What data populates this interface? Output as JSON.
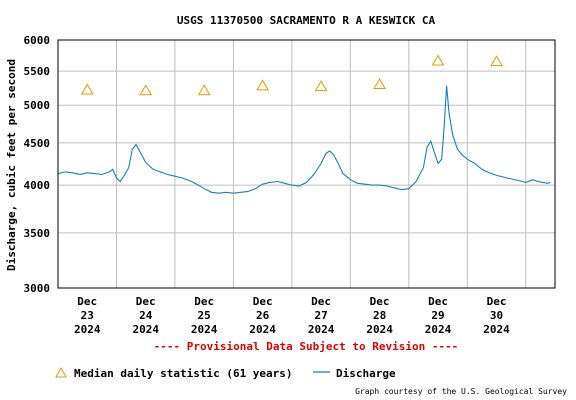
{
  "chart_data": {
    "type": "line",
    "title": "USGS 11370500 SACRAMENTO R A KESWICK CA",
    "ylabel": "Discharge, cubic feet per second",
    "xlabel": "",
    "yscale": "log",
    "ylim": [
      3000,
      6000
    ],
    "yticks": [
      3000,
      3500,
      4000,
      4500,
      5000,
      5500,
      6000
    ],
    "xlim": [
      "2024-12-22T12:00",
      "2024-12-31T00:00"
    ],
    "xticks": [
      {
        "at": "2024-12-23",
        "month": "Dec",
        "day": "23",
        "year": "2024"
      },
      {
        "at": "2024-12-24",
        "month": "Dec",
        "day": "24",
        "year": "2024"
      },
      {
        "at": "2024-12-25",
        "month": "Dec",
        "day": "25",
        "year": "2024"
      },
      {
        "at": "2024-12-26",
        "month": "Dec",
        "day": "26",
        "year": "2024"
      },
      {
        "at": "2024-12-27",
        "month": "Dec",
        "day": "27",
        "year": "2024"
      },
      {
        "at": "2024-12-28",
        "month": "Dec",
        "day": "28",
        "year": "2024"
      },
      {
        "at": "2024-12-29",
        "month": "Dec",
        "day": "29",
        "year": "2024"
      },
      {
        "at": "2024-12-30",
        "month": "Dec",
        "day": "30",
        "year": "2024"
      }
    ],
    "grid": true,
    "series": [
      {
        "name": "Discharge",
        "kind": "line",
        "color": "#1a7fb8",
        "points": [
          [
            "2024-12-22T12:00",
            4130
          ],
          [
            "2024-12-22T15:00",
            4150
          ],
          [
            "2024-12-22T18:00",
            4140
          ],
          [
            "2024-12-22T21:00",
            4120
          ],
          [
            "2024-12-23T00:00",
            4140
          ],
          [
            "2024-12-23T03:00",
            4130
          ],
          [
            "2024-12-23T06:00",
            4120
          ],
          [
            "2024-12-23T09:00",
            4150
          ],
          [
            "2024-12-23T10:30",
            4180
          ],
          [
            "2024-12-23T12:00",
            4080
          ],
          [
            "2024-12-23T13:30",
            4040
          ],
          [
            "2024-12-23T15:00",
            4100
          ],
          [
            "2024-12-23T17:00",
            4200
          ],
          [
            "2024-12-23T18:30",
            4420
          ],
          [
            "2024-12-23T20:00",
            4480
          ],
          [
            "2024-12-23T21:30",
            4400
          ],
          [
            "2024-12-24T00:00",
            4260
          ],
          [
            "2024-12-24T03:00",
            4180
          ],
          [
            "2024-12-24T06:00",
            4150
          ],
          [
            "2024-12-24T09:00",
            4120
          ],
          [
            "2024-12-24T12:00",
            4100
          ],
          [
            "2024-12-24T15:00",
            4080
          ],
          [
            "2024-12-24T18:00",
            4050
          ],
          [
            "2024-12-24T21:00",
            4010
          ],
          [
            "2024-12-25T00:00",
            3960
          ],
          [
            "2024-12-25T03:00",
            3920
          ],
          [
            "2024-12-25T06:00",
            3910
          ],
          [
            "2024-12-25T09:00",
            3920
          ],
          [
            "2024-12-25T12:00",
            3910
          ],
          [
            "2024-12-25T15:00",
            3920
          ],
          [
            "2024-12-25T18:00",
            3930
          ],
          [
            "2024-12-25T21:00",
            3960
          ],
          [
            "2024-12-26T00:00",
            4010
          ],
          [
            "2024-12-26T03:00",
            4030
          ],
          [
            "2024-12-26T06:00",
            4040
          ],
          [
            "2024-12-26T09:00",
            4020
          ],
          [
            "2024-12-26T12:00",
            4000
          ],
          [
            "2024-12-26T15:00",
            3990
          ],
          [
            "2024-12-26T18:00",
            4030
          ],
          [
            "2024-12-26T21:00",
            4120
          ],
          [
            "2024-12-27T00:00",
            4250
          ],
          [
            "2024-12-27T02:00",
            4370
          ],
          [
            "2024-12-27T03:30",
            4400
          ],
          [
            "2024-12-27T05:00",
            4360
          ],
          [
            "2024-12-27T07:00",
            4250
          ],
          [
            "2024-12-27T09:00",
            4130
          ],
          [
            "2024-12-27T12:00",
            4060
          ],
          [
            "2024-12-27T15:00",
            4020
          ],
          [
            "2024-12-27T18:00",
            4010
          ],
          [
            "2024-12-27T21:00",
            4000
          ],
          [
            "2024-12-28T00:00",
            4000
          ],
          [
            "2024-12-28T03:00",
            3990
          ],
          [
            "2024-12-28T06:00",
            3970
          ],
          [
            "2024-12-28T09:00",
            3950
          ],
          [
            "2024-12-28T12:00",
            3960
          ],
          [
            "2024-12-28T15:00",
            4040
          ],
          [
            "2024-12-28T18:00",
            4200
          ],
          [
            "2024-12-28T19:30",
            4450
          ],
          [
            "2024-12-28T21:00",
            4520
          ],
          [
            "2024-12-28T22:30",
            4380
          ],
          [
            "2024-12-29T00:00",
            4250
          ],
          [
            "2024-12-29T01:30",
            4300
          ],
          [
            "2024-12-29T02:30",
            4700
          ],
          [
            "2024-12-29T03:30",
            5280
          ],
          [
            "2024-12-29T04:30",
            4900
          ],
          [
            "2024-12-29T06:00",
            4600
          ],
          [
            "2024-12-29T08:00",
            4420
          ],
          [
            "2024-12-29T10:00",
            4350
          ],
          [
            "2024-12-29T12:00",
            4300
          ],
          [
            "2024-12-29T15:00",
            4250
          ],
          [
            "2024-12-29T18:00",
            4180
          ],
          [
            "2024-12-29T21:00",
            4140
          ],
          [
            "2024-12-30T00:00",
            4110
          ],
          [
            "2024-12-30T03:00",
            4090
          ],
          [
            "2024-12-30T06:00",
            4070
          ],
          [
            "2024-12-30T09:00",
            4050
          ],
          [
            "2024-12-30T12:00",
            4030
          ],
          [
            "2024-12-30T15:00",
            4060
          ],
          [
            "2024-12-30T17:00",
            4040
          ],
          [
            "2024-12-30T19:00",
            4030
          ],
          [
            "2024-12-30T21:00",
            4020
          ],
          [
            "2024-12-30T22:00",
            4030
          ]
        ]
      },
      {
        "name": "Median daily statistic (61 years)",
        "kind": "marker",
        "marker": "triangle",
        "color": "#e39b00",
        "points": [
          [
            "2024-12-23T00:00",
            5210
          ],
          [
            "2024-12-24T00:00",
            5200
          ],
          [
            "2024-12-25T00:00",
            5200
          ],
          [
            "2024-12-26T00:00",
            5270
          ],
          [
            "2024-12-27T00:00",
            5260
          ],
          [
            "2024-12-28T00:00",
            5290
          ],
          [
            "2024-12-29T00:00",
            5650
          ],
          [
            "2024-12-30T00:00",
            5640
          ]
        ]
      }
    ],
    "legend": {
      "placement": "bottom-left",
      "items": [
        {
          "label": "Median daily statistic (61 years)",
          "symbol": "triangle",
          "color": "#e39b00"
        },
        {
          "label": "Discharge",
          "symbol": "line",
          "color": "#1a7fb8"
        }
      ]
    }
  },
  "notice": "---- Provisional Data Subject to Revision ----",
  "notice_color": "#e00000",
  "credit": "Graph courtesy of the U.S. Geological Survey",
  "colors": {
    "frame": "#000000",
    "grid": "#bfbfbf"
  }
}
